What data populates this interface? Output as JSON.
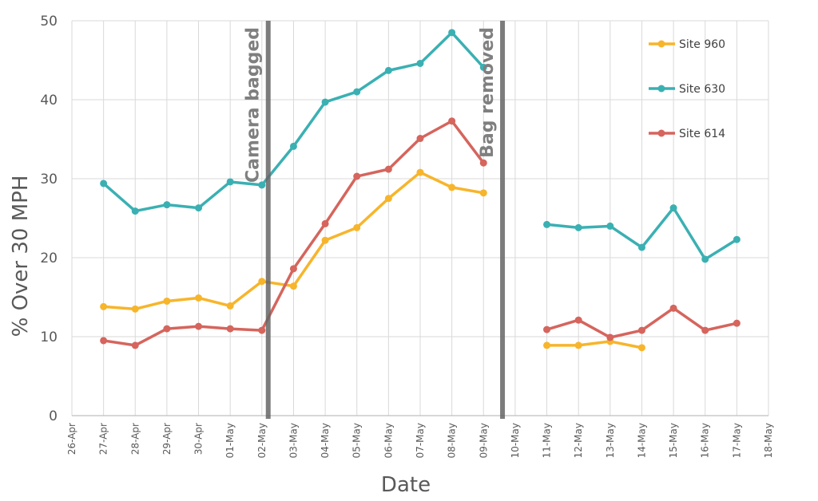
{
  "chart_data": {
    "type": "line",
    "xlabel": "Date",
    "ylabel": "% Over 30 MPH",
    "ylim": [
      0,
      50
    ],
    "yticks": [
      0,
      10,
      20,
      30,
      40,
      50
    ],
    "grid": true,
    "legend_position": "top-right",
    "categories": [
      "26-Apr",
      "27-Apr",
      "28-Apr",
      "29-Apr",
      "30-Apr",
      "01-May",
      "02-May",
      "03-May",
      "04-May",
      "05-May",
      "06-May",
      "07-May",
      "08-May",
      "09-May",
      "10-May",
      "11-May",
      "12-May",
      "13-May",
      "14-May",
      "15-May",
      "16-May",
      "17-May",
      "18-May"
    ],
    "series": [
      {
        "name": "Site 960",
        "color": "#f7b52b",
        "values": [
          null,
          13.8,
          13.5,
          14.5,
          14.9,
          13.9,
          17.0,
          16.4,
          22.2,
          23.8,
          27.5,
          30.8,
          28.9,
          28.2,
          null,
          8.9,
          8.9,
          9.4,
          8.6,
          null,
          null,
          null,
          null
        ]
      },
      {
        "name": "Site 630",
        "color": "#3bb0b3",
        "values": [
          null,
          29.4,
          25.9,
          26.7,
          26.3,
          29.6,
          29.2,
          34.1,
          39.7,
          41.0,
          43.7,
          44.6,
          48.5,
          44.1,
          null,
          24.2,
          23.8,
          24.0,
          21.3,
          26.3,
          19.8,
          22.3,
          null
        ]
      },
      {
        "name": "Site 614",
        "color": "#d5655d",
        "values": [
          null,
          9.5,
          8.9,
          11.0,
          11.3,
          11.0,
          10.8,
          18.6,
          24.3,
          30.3,
          31.2,
          35.1,
          37.3,
          32.0,
          null,
          10.9,
          12.1,
          9.9,
          10.8,
          13.6,
          10.8,
          11.7,
          null
        ]
      }
    ],
    "annotations": [
      {
        "label": "Camera bagged",
        "x": "02-May",
        "x_offset_days": 0.2,
        "color": "#666666"
      },
      {
        "label": "Bag removed",
        "x": "09-May",
        "x_offset_days": 0.6,
        "color": "#666666"
      }
    ],
    "colors": {
      "grid": "#d9d9d9",
      "axis": "#bfbfbf",
      "text": "#595959"
    }
  }
}
